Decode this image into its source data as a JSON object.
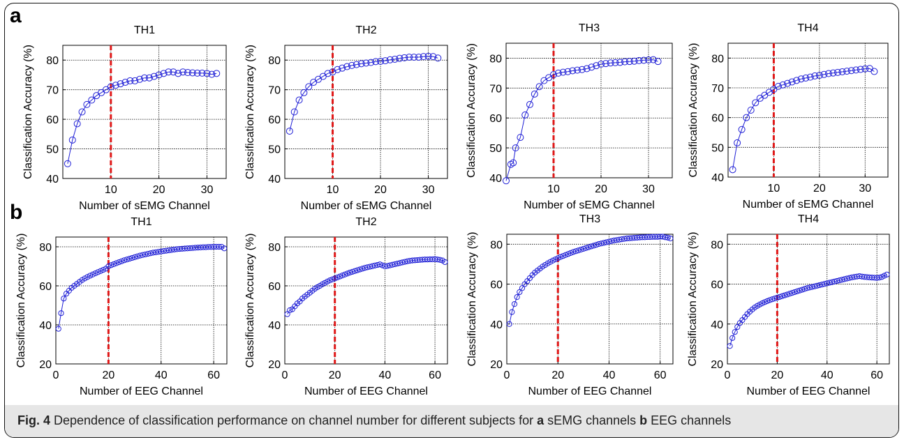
{
  "figure": {
    "panel_a_letter": "a",
    "panel_b_letter": "b",
    "caption": {
      "label": "Fig. 4",
      "text_1": " Dependence of classification performance on channel number for different subjects for ",
      "a": "a",
      "text_2": " sEMG channels ",
      "b": "b",
      "text_3": " EEG channels"
    }
  },
  "colors": {
    "series": "#1f1fd6",
    "threshold": "#e01818",
    "grid": "#000000"
  },
  "chart_data": [
    {
      "row": "a",
      "type": "line",
      "title": "TH1",
      "xlabel": "Number of sEMG Channel",
      "ylabel": "Classification Accuracy (%)",
      "xlim": [
        0,
        34
      ],
      "ylim": [
        40,
        85
      ],
      "xticks": [
        10,
        20,
        30
      ],
      "yticks": [
        40,
        50,
        60,
        70,
        80
      ],
      "grid": true,
      "threshold_x": 10,
      "x": [
        1,
        2,
        3,
        4,
        5,
        6,
        7,
        8,
        9,
        10,
        11,
        12,
        13,
        14,
        15,
        16,
        17,
        18,
        19,
        20,
        21,
        22,
        23,
        24,
        25,
        26,
        27,
        28,
        29,
        30,
        31,
        32
      ],
      "values": [
        45,
        53,
        58.5,
        62.5,
        65,
        66.5,
        68,
        69,
        70,
        71,
        71.5,
        72,
        72.5,
        73,
        73,
        73.5,
        74,
        74,
        74.5,
        75,
        75.5,
        76,
        76,
        75.5,
        76,
        75.8,
        75.7,
        75.6,
        75.6,
        75.5,
        75.2,
        75.5
      ]
    },
    {
      "row": "a",
      "type": "line",
      "title": "TH2",
      "xlabel": "Number of sEMG Channel",
      "ylabel": "Classification Accuracy (%)",
      "xlim": [
        0,
        34
      ],
      "ylim": [
        40,
        85
      ],
      "xticks": [
        10,
        20,
        30
      ],
      "yticks": [
        40,
        50,
        60,
        70,
        80
      ],
      "grid": true,
      "threshold_x": 10,
      "x": [
        1,
        2,
        3,
        4,
        5,
        6,
        7,
        8,
        9,
        10,
        11,
        12,
        13,
        14,
        15,
        16,
        17,
        18,
        19,
        20,
        21,
        22,
        23,
        24,
        25,
        26,
        27,
        28,
        29,
        30,
        31,
        32
      ],
      "values": [
        56,
        62.5,
        66.5,
        69,
        71,
        72.5,
        73.5,
        74.5,
        75.5,
        76,
        76.8,
        77.3,
        77.8,
        78.2,
        78.5,
        78.8,
        79,
        79.2,
        79.5,
        79.6,
        79.8,
        80.1,
        80.3,
        80.6,
        80.8,
        81,
        81,
        81,
        81.2,
        81.3,
        81.2,
        80.7
      ]
    },
    {
      "row": "a",
      "type": "line",
      "title": "TH3",
      "xlabel": "Number of sEMG Channel",
      "ylabel": "Classification Accuracy (%)",
      "xlim": [
        0,
        35
      ],
      "ylim": [
        40,
        85
      ],
      "xticks": [
        10,
        20,
        30
      ],
      "yticks": [
        40,
        50,
        60,
        70,
        80
      ],
      "grid": true,
      "threshold_x": 10,
      "x": [
        0,
        1,
        1.5,
        2,
        3,
        4,
        5,
        6,
        7,
        8,
        9,
        10,
        11,
        12,
        13,
        14,
        15,
        16,
        17,
        18,
        19,
        20,
        21,
        22,
        23,
        24,
        25,
        26,
        27,
        28,
        29,
        30,
        31,
        32
      ],
      "values": [
        39,
        44.5,
        45,
        50,
        53.5,
        61,
        64.5,
        68,
        70.5,
        72.5,
        73.5,
        74.5,
        75,
        75.3,
        75.5,
        75.8,
        76,
        76.2,
        76.5,
        77,
        77.5,
        78,
        78.2,
        78.4,
        78.5,
        78.6,
        78.8,
        78.9,
        79,
        79.2,
        79.3,
        79.4,
        79.5,
        78.9
      ]
    },
    {
      "row": "a",
      "type": "line",
      "title": "TH4",
      "xlabel": "Number of sEMG Channel",
      "ylabel": "Classification Accuracy (%)",
      "xlim": [
        0,
        35
      ],
      "ylim": [
        40,
        85
      ],
      "xticks": [
        10,
        20,
        30
      ],
      "yticks": [
        40,
        50,
        60,
        70,
        80
      ],
      "grid": true,
      "threshold_x": 10,
      "x": [
        1,
        2,
        3,
        4,
        5,
        6,
        7,
        8,
        9,
        10,
        11,
        12,
        13,
        14,
        15,
        16,
        17,
        18,
        19,
        20,
        21,
        22,
        23,
        24,
        25,
        26,
        27,
        28,
        29,
        30,
        31,
        32
      ],
      "values": [
        42.5,
        51.5,
        56,
        60,
        62.5,
        65,
        66.5,
        67.5,
        68.5,
        69.5,
        70.5,
        71,
        71.5,
        72,
        72.5,
        73,
        73.3,
        73.6,
        74,
        74.2,
        74.5,
        74.8,
        75,
        75.2,
        75.4,
        75.6,
        75.8,
        76,
        76.2,
        76.4,
        76.5,
        75.5
      ]
    },
    {
      "row": "b",
      "type": "line",
      "title": "TH1",
      "xlabel": "Number of EEG Channel",
      "ylabel": "Classification Accuracy (%)",
      "xlim": [
        0,
        65
      ],
      "ylim": [
        20,
        85
      ],
      "xticks": [
        0,
        20,
        40,
        60
      ],
      "yticks": [
        20,
        40,
        60,
        80
      ],
      "grid": true,
      "threshold_x": 20,
      "x": [
        1,
        2,
        3,
        4,
        5,
        6,
        7,
        8,
        9,
        10,
        11,
        12,
        13,
        14,
        15,
        16,
        17,
        18,
        19,
        20,
        21,
        22,
        23,
        24,
        25,
        26,
        27,
        28,
        29,
        30,
        31,
        32,
        33,
        34,
        35,
        36,
        37,
        38,
        39,
        40,
        41,
        42,
        43,
        44,
        45,
        46,
        47,
        48,
        49,
        50,
        51,
        52,
        53,
        54,
        55,
        56,
        57,
        58,
        59,
        60,
        61,
        62,
        63,
        64
      ],
      "values": [
        38,
        46,
        53.5,
        56,
        57.5,
        59,
        60,
        61,
        62,
        63,
        63.8,
        64.5,
        65.2,
        65.8,
        66.4,
        67,
        67.6,
        68.2,
        68.8,
        70,
        70.6,
        71.1,
        71.6,
        72.1,
        72.6,
        73.1,
        73.5,
        73.9,
        74.3,
        74.7,
        75.1,
        75.5,
        75.8,
        76.1,
        76.4,
        76.7,
        77,
        77.2,
        77.4,
        77.6,
        77.8,
        78,
        78.2,
        78.4,
        78.6,
        78.8,
        78.9,
        79,
        79.1,
        79.2,
        79.3,
        79.4,
        79.5,
        79.6,
        79.7,
        79.8,
        79.8,
        79.9,
        79.9,
        80,
        80,
        80,
        80,
        79.2
      ]
    },
    {
      "row": "b",
      "type": "line",
      "title": "TH2",
      "xlabel": "Number of EEG Channel",
      "ylabel": "Classification Accuracy (%)",
      "xlim": [
        0,
        65
      ],
      "ylim": [
        20,
        85
      ],
      "xticks": [
        0,
        20,
        40,
        60
      ],
      "yticks": [
        20,
        40,
        60,
        80
      ],
      "grid": true,
      "threshold_x": 20,
      "x": [
        1,
        2,
        3,
        4,
        5,
        6,
        7,
        8,
        9,
        10,
        11,
        12,
        13,
        14,
        15,
        16,
        17,
        18,
        19,
        20,
        21,
        22,
        23,
        24,
        25,
        26,
        27,
        28,
        29,
        30,
        31,
        32,
        33,
        34,
        35,
        36,
        37,
        38,
        39,
        40,
        41,
        42,
        43,
        44,
        45,
        46,
        47,
        48,
        49,
        50,
        51,
        52,
        53,
        54,
        55,
        56,
        57,
        58,
        59,
        60,
        61,
        62,
        63,
        64
      ],
      "values": [
        45.5,
        47.5,
        48,
        49.5,
        51,
        52,
        53.5,
        54.5,
        55.5,
        56.5,
        57.5,
        58.5,
        59.3,
        60,
        60.8,
        61.5,
        62.2,
        62.8,
        63.3,
        63.8,
        64.3,
        64.8,
        65.3,
        65.8,
        66.3,
        66.8,
        67.2,
        67.6,
        68,
        68.4,
        68.8,
        69.2,
        69.5,
        69.8,
        70.1,
        70.4,
        70.7,
        71,
        70.5,
        70,
        70.2,
        70.5,
        70.8,
        71.1,
        71.4,
        71.7,
        72,
        72.3,
        72.6,
        72.8,
        73,
        73.1,
        73.2,
        73.3,
        73.4,
        73.5,
        73.5,
        73.6,
        73.6,
        73.7,
        73.5,
        73.3,
        73,
        72.2
      ]
    },
    {
      "row": "b",
      "type": "line",
      "title": "TH3",
      "xlabel": "Number of EEG Channel",
      "ylabel": "Classification Accuracy (%)",
      "xlim": [
        0,
        65
      ],
      "ylim": [
        20,
        85
      ],
      "xticks": [
        0,
        20,
        40,
        60
      ],
      "yticks": [
        20,
        40,
        60,
        80
      ],
      "grid": true,
      "threshold_x": 20,
      "x": [
        1,
        2,
        3,
        4,
        5,
        6,
        7,
        8,
        9,
        10,
        11,
        12,
        13,
        14,
        15,
        16,
        17,
        18,
        19,
        20,
        21,
        22,
        23,
        24,
        25,
        26,
        27,
        28,
        29,
        30,
        31,
        32,
        33,
        34,
        35,
        36,
        37,
        38,
        39,
        40,
        41,
        42,
        43,
        44,
        45,
        46,
        47,
        48,
        49,
        50,
        51,
        52,
        53,
        54,
        55,
        56,
        57,
        58,
        59,
        60,
        61,
        62,
        63,
        64
      ],
      "values": [
        40,
        46,
        50,
        53.5,
        56,
        58,
        60,
        61.5,
        63,
        64.5,
        65.8,
        66.8,
        67.8,
        68.8,
        69.6,
        70.4,
        71.1,
        71.8,
        72.4,
        73,
        73.6,
        74.1,
        74.6,
        75.1,
        75.6,
        76.1,
        76.5,
        76.9,
        77.3,
        77.7,
        78.1,
        78.5,
        78.9,
        79.3,
        79.7,
        80.1,
        80.4,
        80.7,
        81,
        81.3,
        81.6,
        81.9,
        82.1,
        82.3,
        82.5,
        82.7,
        82.9,
        83,
        83.1,
        83.2,
        83.3,
        83.4,
        83.5,
        83.5,
        83.6,
        83.6,
        83.7,
        83.7,
        83.7,
        83.8,
        83.8,
        83.5,
        83.3,
        82.9
      ]
    },
    {
      "row": "b",
      "type": "line",
      "title": "TH4",
      "xlabel": "Number of EEG Channel",
      "ylabel": "Classification Accuracy (%)",
      "xlim": [
        0,
        65
      ],
      "ylim": [
        20,
        85
      ],
      "xticks": [
        0,
        20,
        40,
        60
      ],
      "yticks": [
        20,
        40,
        60,
        80
      ],
      "grid": true,
      "threshold_x": 20,
      "x": [
        1,
        2,
        3,
        4,
        5,
        6,
        7,
        8,
        9,
        10,
        11,
        12,
        13,
        14,
        15,
        16,
        17,
        18,
        19,
        20,
        21,
        22,
        23,
        24,
        25,
        26,
        27,
        28,
        29,
        30,
        31,
        32,
        33,
        34,
        35,
        36,
        37,
        38,
        39,
        40,
        41,
        42,
        43,
        44,
        45,
        46,
        47,
        48,
        49,
        50,
        51,
        52,
        53,
        54,
        55,
        56,
        57,
        58,
        59,
        60,
        61,
        62,
        63,
        64
      ],
      "values": [
        29,
        33,
        36,
        38.5,
        40.5,
        42,
        43.5,
        45,
        46.2,
        47.3,
        48.3,
        49.1,
        49.8,
        50.4,
        51,
        51.5,
        52,
        52.4,
        52.8,
        53.2,
        53.6,
        54,
        54.4,
        54.8,
        55.2,
        55.6,
        56,
        56.4,
        56.8,
        57.2,
        57.6,
        58,
        58.3,
        58.6,
        58.9,
        59.2,
        59.5,
        59.8,
        60.1,
        60.4,
        60.7,
        61,
        61.3,
        61.6,
        61.9,
        62.2,
        62.5,
        62.8,
        63.1,
        63.4,
        63.6,
        63.8,
        64,
        63.8,
        63.6,
        63.5,
        63.4,
        63.3,
        63.2,
        63.1,
        63.3,
        63.6,
        64.2,
        64.8
      ]
    }
  ]
}
